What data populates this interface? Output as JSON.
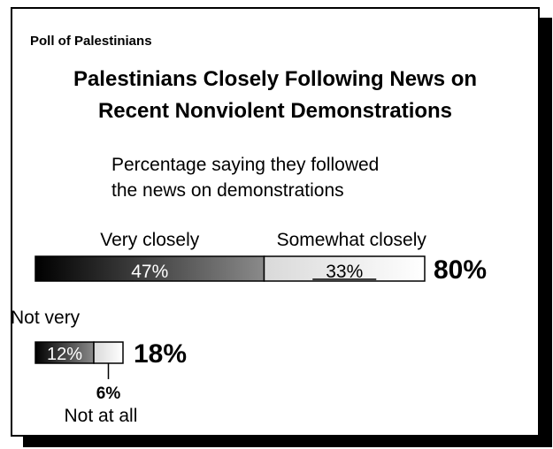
{
  "header": {
    "label": "Poll of Palestinians",
    "title_line1": "Palestinians Closely Following News on",
    "title_line2": "Recent Nonviolent Demonstrations"
  },
  "chart_data": {
    "type": "bar",
    "subtitle_line1": "Percentage saying they followed",
    "subtitle_line2": "the news on demonstrations",
    "bars": [
      {
        "total": 80,
        "total_label": "80%",
        "segments": [
          {
            "name": "Very closely",
            "value": 47,
            "label": "47%"
          },
          {
            "name": "Somewhat closely",
            "value": 33,
            "label": "33%"
          }
        ]
      },
      {
        "total": 18,
        "total_label": "18%",
        "segments": [
          {
            "name": "Not very",
            "value": 12,
            "label": "12%"
          },
          {
            "name": "Not at all",
            "value": 6,
            "label": "6%"
          }
        ]
      }
    ]
  },
  "colors": {
    "gradient_dark": "#000000",
    "gradient_mid": "#8a8a8a",
    "gradient_light": "#d9d9d9",
    "gradient_end": "#ffffff"
  }
}
